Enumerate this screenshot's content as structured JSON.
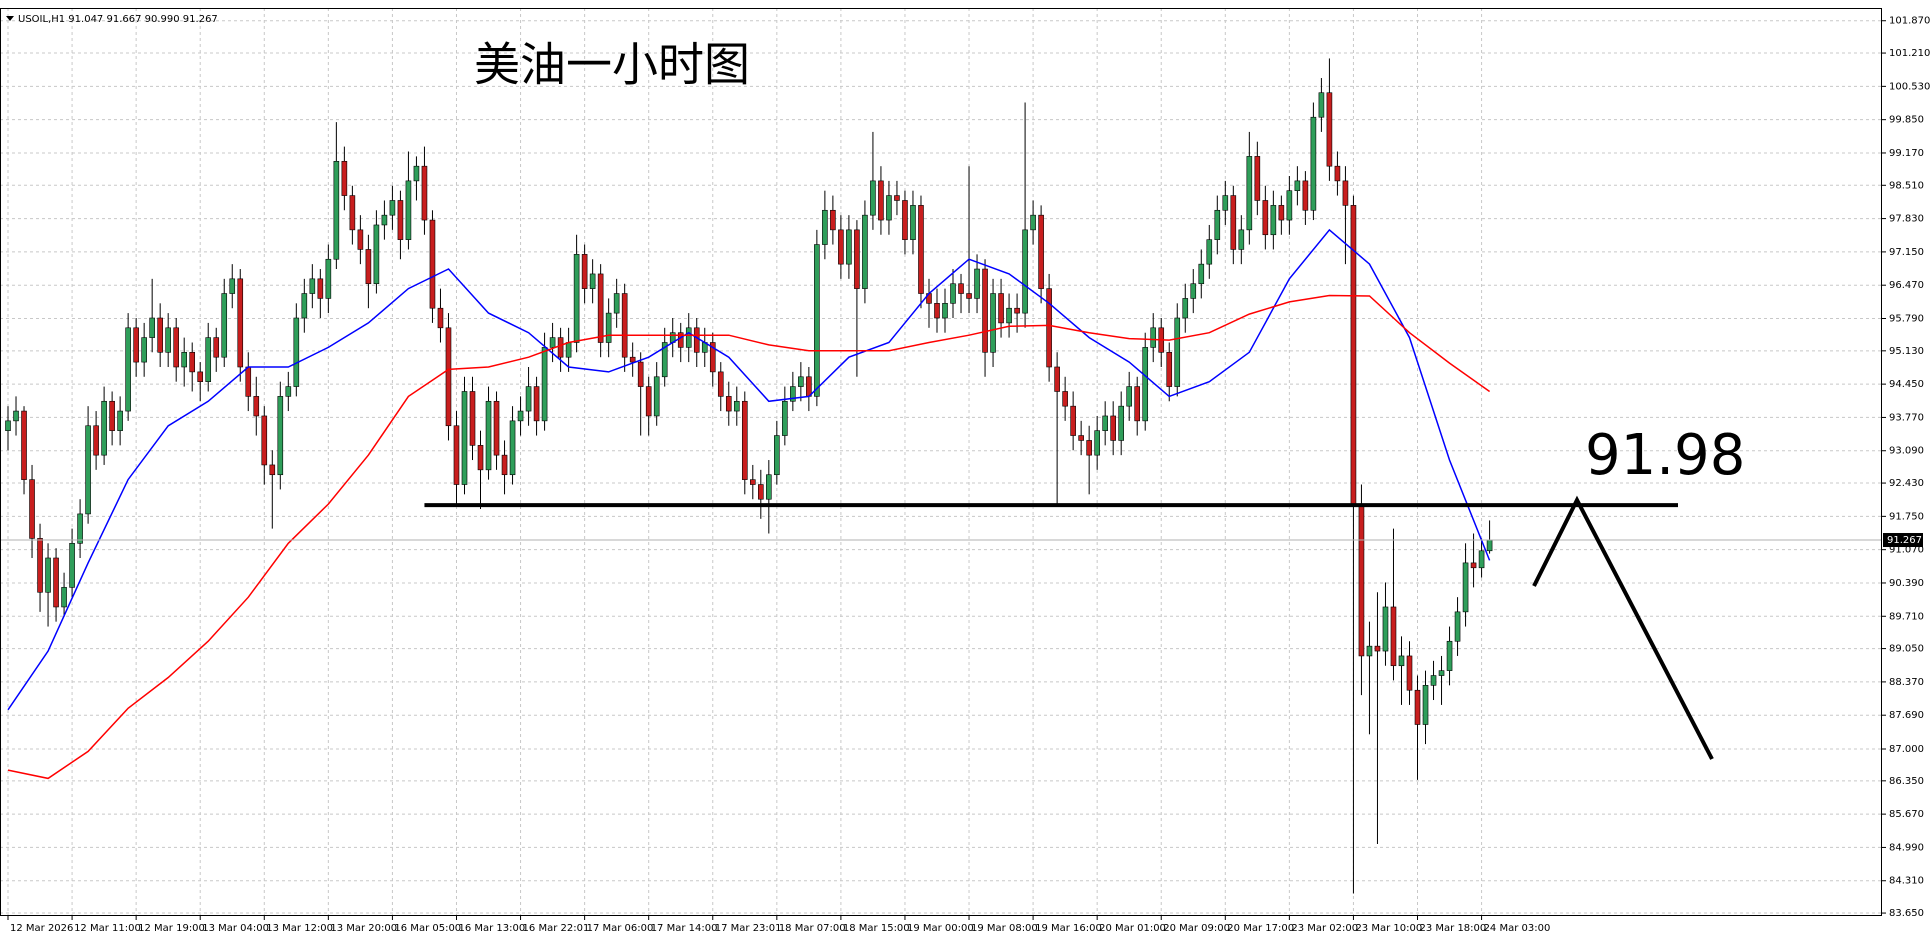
{
  "chart_data": {
    "type": "candlestick",
    "symbol_info": "USOIL,H1  91.047 91.667 90.990 91.267",
    "title": "美油一小时图",
    "categories": [
      "12 Mar 2026",
      null,
      null,
      null,
      null,
      null,
      null,
      null,
      "12 Mar 11:00",
      null,
      null,
      null,
      null,
      null,
      null,
      null,
      "12 Mar 19:00",
      null,
      null,
      null,
      null,
      null,
      null,
      null,
      "13 Mar 04:00",
      null,
      null,
      null,
      null,
      null,
      null,
      null,
      "13 Mar 12:00",
      null,
      null,
      null,
      null,
      null,
      null,
      null,
      "13 Mar 20:00",
      null,
      null,
      null,
      null,
      null,
      null,
      null,
      "16 Mar 05:00",
      null,
      null,
      null,
      null,
      null,
      null,
      null,
      "16 Mar 13:00",
      null,
      null,
      null,
      null,
      null,
      null,
      null,
      "16 Mar 22:01",
      null,
      null,
      null,
      null,
      null,
      null,
      null,
      "17 Mar 06:00",
      null,
      null,
      null,
      null,
      null,
      null,
      null,
      "17 Mar 14:00",
      null,
      null,
      null,
      null,
      null,
      null,
      null,
      "17 Mar 23:01",
      null,
      null,
      null,
      null,
      null,
      null,
      null,
      "18 Mar 07:00",
      null,
      null,
      null,
      null,
      null,
      null,
      null,
      "18 Mar 15:00",
      null,
      null,
      null,
      null,
      null,
      null,
      null,
      "19 Mar 00:00",
      null,
      null,
      null,
      null,
      null,
      null,
      null,
      "19 Mar 08:00",
      null,
      null,
      null,
      null,
      null,
      null,
      null,
      "19 Mar 16:00",
      null,
      null,
      null,
      null,
      null,
      null,
      null,
      "20 Mar 01:00",
      null,
      null,
      null,
      null,
      null,
      null,
      null,
      "20 Mar 09:00",
      null,
      null,
      null,
      null,
      null,
      null,
      null,
      "20 Mar 17:00",
      null,
      null,
      null,
      null,
      null,
      null,
      null,
      "23 Mar 02:00",
      null,
      null,
      null,
      null,
      null,
      null,
      null,
      "23 Mar 10:00",
      null,
      null,
      null,
      null,
      null,
      null,
      null,
      "23 Mar 18:00",
      null,
      null,
      null,
      null,
      null,
      null,
      null,
      "24 Mar 03:00",
      null
    ],
    "ohlc": [
      [
        93.5,
        94.0,
        93.1,
        93.7
      ],
      [
        93.7,
        94.2,
        93.4,
        93.9
      ],
      [
        93.9,
        94.0,
        92.2,
        92.5
      ],
      [
        92.5,
        92.8,
        90.9,
        91.3
      ],
      [
        91.3,
        91.6,
        89.8,
        90.2
      ],
      [
        90.2,
        91.2,
        89.5,
        90.9
      ],
      [
        90.9,
        91.1,
        89.6,
        89.9
      ],
      [
        89.9,
        90.6,
        89.7,
        90.3
      ],
      [
        90.3,
        91.5,
        90.1,
        91.2
      ],
      [
        91.2,
        92.1,
        90.9,
        91.8
      ],
      [
        91.8,
        94.0,
        91.6,
        93.6
      ],
      [
        93.6,
        93.9,
        92.7,
        93.0
      ],
      [
        93.0,
        94.4,
        92.8,
        94.1
      ],
      [
        94.1,
        94.3,
        93.2,
        93.5
      ],
      [
        93.5,
        94.2,
        93.2,
        93.9
      ],
      [
        93.9,
        95.9,
        93.7,
        95.6
      ],
      [
        95.6,
        95.8,
        94.6,
        94.9
      ],
      [
        94.9,
        95.7,
        94.6,
        95.4
      ],
      [
        95.4,
        96.6,
        95.1,
        95.8
      ],
      [
        95.8,
        96.1,
        94.8,
        95.1
      ],
      [
        95.1,
        95.9,
        94.8,
        95.6
      ],
      [
        95.6,
        95.8,
        94.5,
        94.8
      ],
      [
        94.8,
        95.4,
        94.4,
        95.1
      ],
      [
        95.1,
        95.3,
        94.3,
        94.7
      ],
      [
        94.7,
        94.9,
        94.1,
        94.5
      ],
      [
        94.5,
        95.7,
        94.3,
        95.4
      ],
      [
        95.4,
        95.6,
        94.7,
        95.0
      ],
      [
        95.0,
        96.6,
        94.8,
        96.3
      ],
      [
        96.3,
        96.9,
        96.0,
        96.6
      ],
      [
        96.6,
        96.8,
        94.5,
        94.8
      ],
      [
        94.8,
        95.1,
        93.9,
        94.2
      ],
      [
        94.2,
        94.6,
        93.4,
        93.8
      ],
      [
        93.8,
        94.0,
        92.4,
        92.8
      ],
      [
        92.8,
        93.1,
        91.5,
        92.6
      ],
      [
        92.6,
        94.5,
        92.3,
        94.2
      ],
      [
        94.2,
        94.7,
        93.9,
        94.4
      ],
      [
        94.4,
        96.1,
        94.2,
        95.8
      ],
      [
        95.8,
        96.6,
        95.5,
        96.3
      ],
      [
        96.3,
        96.9,
        96.0,
        96.6
      ],
      [
        96.6,
        96.8,
        95.8,
        96.2
      ],
      [
        96.2,
        97.3,
        95.9,
        97.0
      ],
      [
        97.0,
        99.8,
        96.8,
        99.0
      ],
      [
        99.0,
        99.3,
        98.0,
        98.3
      ],
      [
        98.3,
        98.5,
        97.3,
        97.6
      ],
      [
        97.6,
        97.9,
        96.9,
        97.2
      ],
      [
        97.2,
        97.5,
        96.0,
        96.5
      ],
      [
        96.5,
        98.0,
        96.3,
        97.7
      ],
      [
        97.7,
        98.2,
        97.4,
        97.9
      ],
      [
        97.9,
        98.5,
        97.6,
        98.2
      ],
      [
        98.2,
        98.4,
        97.0,
        97.4
      ],
      [
        97.4,
        99.2,
        97.2,
        98.6
      ],
      [
        98.6,
        99.1,
        98.2,
        98.9
      ],
      [
        98.9,
        99.3,
        97.5,
        97.8
      ],
      [
        97.8,
        98.0,
        95.7,
        96.0
      ],
      [
        96.0,
        96.4,
        95.3,
        95.6
      ],
      [
        95.6,
        95.9,
        93.3,
        93.6
      ],
      [
        93.6,
        93.9,
        92.0,
        92.4
      ],
      [
        92.4,
        94.6,
        92.2,
        94.3
      ],
      [
        94.3,
        94.6,
        92.9,
        93.2
      ],
      [
        93.2,
        93.5,
        91.9,
        92.7
      ],
      [
        92.7,
        94.4,
        92.5,
        94.1
      ],
      [
        94.1,
        94.3,
        92.7,
        93.0
      ],
      [
        93.0,
        93.3,
        92.2,
        92.6
      ],
      [
        92.6,
        94.0,
        92.4,
        93.7
      ],
      [
        93.7,
        94.2,
        93.4,
        93.9
      ],
      [
        93.9,
        94.8,
        93.6,
        94.4
      ],
      [
        94.4,
        94.6,
        93.4,
        93.7
      ],
      [
        93.7,
        95.5,
        93.5,
        95.2
      ],
      [
        95.2,
        95.7,
        94.9,
        95.4
      ],
      [
        95.4,
        95.6,
        94.7,
        95.0
      ],
      [
        95.0,
        95.6,
        94.7,
        95.3
      ],
      [
        95.3,
        97.5,
        95.1,
        97.1
      ],
      [
        97.1,
        97.3,
        96.1,
        96.4
      ],
      [
        96.4,
        97.0,
        96.1,
        96.7
      ],
      [
        96.7,
        96.9,
        95.0,
        95.3
      ],
      [
        95.3,
        96.2,
        95.0,
        95.9
      ],
      [
        95.9,
        96.6,
        95.6,
        96.3
      ],
      [
        96.3,
        96.5,
        94.7,
        95.0
      ],
      [
        95.0,
        95.3,
        94.6,
        94.9
      ],
      [
        94.9,
        95.1,
        93.4,
        94.4
      ],
      [
        94.4,
        94.6,
        93.4,
        93.8
      ],
      [
        93.8,
        94.9,
        93.6,
        94.6
      ],
      [
        94.6,
        95.6,
        94.4,
        95.3
      ],
      [
        95.3,
        95.8,
        95.0,
        95.5
      ],
      [
        95.5,
        95.7,
        94.9,
        95.2
      ],
      [
        95.2,
        95.9,
        94.9,
        95.6
      ],
      [
        95.6,
        95.8,
        94.8,
        95.1
      ],
      [
        95.1,
        95.6,
        94.8,
        95.3
      ],
      [
        95.3,
        95.5,
        94.4,
        94.7
      ],
      [
        94.7,
        94.9,
        93.9,
        94.2
      ],
      [
        94.2,
        94.5,
        93.6,
        93.9
      ],
      [
        93.9,
        94.4,
        93.6,
        94.1
      ],
      [
        94.1,
        94.3,
        92.2,
        92.5
      ],
      [
        92.5,
        92.8,
        92.1,
        92.4
      ],
      [
        92.4,
        92.7,
        91.7,
        92.1
      ],
      [
        92.1,
        92.9,
        91.4,
        92.6
      ],
      [
        92.6,
        93.7,
        92.4,
        93.4
      ],
      [
        93.4,
        94.4,
        93.2,
        94.1
      ],
      [
        94.1,
        94.7,
        93.9,
        94.4
      ],
      [
        94.4,
        94.9,
        94.1,
        94.6
      ],
      [
        94.6,
        94.8,
        93.9,
        94.2
      ],
      [
        94.2,
        97.6,
        94.0,
        97.3
      ],
      [
        97.3,
        98.4,
        97.0,
        98.0
      ],
      [
        98.0,
        98.3,
        97.3,
        97.6
      ],
      [
        97.6,
        97.9,
        96.6,
        96.9
      ],
      [
        96.9,
        97.9,
        96.6,
        97.6
      ],
      [
        97.6,
        97.8,
        94.6,
        96.4
      ],
      [
        96.4,
        98.2,
        96.1,
        97.9
      ],
      [
        97.9,
        99.6,
        97.6,
        98.6
      ],
      [
        98.6,
        98.9,
        97.5,
        97.8
      ],
      [
        97.8,
        98.6,
        97.5,
        98.3
      ],
      [
        98.3,
        98.6,
        97.9,
        98.2
      ],
      [
        98.2,
        98.4,
        97.1,
        97.4
      ],
      [
        97.4,
        98.4,
        97.1,
        98.1
      ],
      [
        98.1,
        98.3,
        96.0,
        96.3
      ],
      [
        96.3,
        96.6,
        95.6,
        96.1
      ],
      [
        96.1,
        96.4,
        95.5,
        95.8
      ],
      [
        95.8,
        96.4,
        95.5,
        96.1
      ],
      [
        96.1,
        96.8,
        95.8,
        96.5
      ],
      [
        96.5,
        96.7,
        95.9,
        96.3
      ],
      [
        96.3,
        98.9,
        95.9,
        96.2
      ],
      [
        96.2,
        97.1,
        95.9,
        96.8
      ],
      [
        96.8,
        97.0,
        94.6,
        95.1
      ],
      [
        95.1,
        96.6,
        94.8,
        96.3
      ],
      [
        96.3,
        96.6,
        95.4,
        95.7
      ],
      [
        95.7,
        96.3,
        95.4,
        96.0
      ],
      [
        96.0,
        96.3,
        95.5,
        95.9
      ],
      [
        95.9,
        100.2,
        95.6,
        97.6
      ],
      [
        97.6,
        98.2,
        97.3,
        97.9
      ],
      [
        97.9,
        98.1,
        96.1,
        96.4
      ],
      [
        96.4,
        96.7,
        94.5,
        94.8
      ],
      [
        94.8,
        95.1,
        92.0,
        94.3
      ],
      [
        94.3,
        94.6,
        93.7,
        94.0
      ],
      [
        94.0,
        94.3,
        93.1,
        93.4
      ],
      [
        93.4,
        93.7,
        93.0,
        93.3
      ],
      [
        93.3,
        93.6,
        92.2,
        93.0
      ],
      [
        93.0,
        93.8,
        92.7,
        93.5
      ],
      [
        93.5,
        94.1,
        93.2,
        93.8
      ],
      [
        93.8,
        94.1,
        93.0,
        93.3
      ],
      [
        93.3,
        94.3,
        93.0,
        94.0
      ],
      [
        94.0,
        94.7,
        93.7,
        94.4
      ],
      [
        94.4,
        94.6,
        93.4,
        93.7
      ],
      [
        93.7,
        95.5,
        93.5,
        95.2
      ],
      [
        95.2,
        95.9,
        94.9,
        95.6
      ],
      [
        95.6,
        95.8,
        94.8,
        95.1
      ],
      [
        95.1,
        95.3,
        94.1,
        94.4
      ],
      [
        94.4,
        96.1,
        94.2,
        95.8
      ],
      [
        95.8,
        96.5,
        95.5,
        96.2
      ],
      [
        96.2,
        96.8,
        95.9,
        96.5
      ],
      [
        96.5,
        97.2,
        96.2,
        96.9
      ],
      [
        96.9,
        97.7,
        96.6,
        97.4
      ],
      [
        97.4,
        98.3,
        97.1,
        98.0
      ],
      [
        98.0,
        98.6,
        97.7,
        98.3
      ],
      [
        98.3,
        98.5,
        96.9,
        97.2
      ],
      [
        97.2,
        97.9,
        96.9,
        97.6
      ],
      [
        97.6,
        99.6,
        97.3,
        99.1
      ],
      [
        99.1,
        99.4,
        97.9,
        98.2
      ],
      [
        98.2,
        98.5,
        97.2,
        97.5
      ],
      [
        97.5,
        98.4,
        97.2,
        98.1
      ],
      [
        98.1,
        98.3,
        97.5,
        97.8
      ],
      [
        97.8,
        98.7,
        97.5,
        98.4
      ],
      [
        98.4,
        98.9,
        98.1,
        98.6
      ],
      [
        98.6,
        98.8,
        97.7,
        98.0
      ],
      [
        98.0,
        100.2,
        97.8,
        99.9
      ],
      [
        99.9,
        100.7,
        99.6,
        100.4
      ],
      [
        100.4,
        101.1,
        98.6,
        98.9
      ],
      [
        98.9,
        99.2,
        98.3,
        98.6
      ],
      [
        98.6,
        98.9,
        96.9,
        98.1
      ],
      [
        98.1,
        98.3,
        84.05,
        92.0
      ],
      [
        92.0,
        92.4,
        88.1,
        88.9
      ],
      [
        88.9,
        89.6,
        87.3,
        89.1
      ],
      [
        89.1,
        90.2,
        85.06,
        89.0
      ],
      [
        89.0,
        90.4,
        88.7,
        89.9
      ],
      [
        89.9,
        91.5,
        88.4,
        88.7
      ],
      [
        88.7,
        89.3,
        87.9,
        88.9
      ],
      [
        88.9,
        89.2,
        87.9,
        88.2
      ],
      [
        88.2,
        88.5,
        86.37,
        87.5
      ],
      [
        87.5,
        88.6,
        87.1,
        88.3
      ],
      [
        88.3,
        88.8,
        88.0,
        88.5
      ],
      [
        88.5,
        88.9,
        87.9,
        88.6
      ],
      [
        88.6,
        89.5,
        88.3,
        89.2
      ],
      [
        89.2,
        90.1,
        88.9,
        89.8
      ],
      [
        89.8,
        91.2,
        89.5,
        90.8
      ],
      [
        90.8,
        91.4,
        90.3,
        90.7
      ],
      [
        90.7,
        91.3,
        90.5,
        91.047
      ],
      [
        91.047,
        91.667,
        90.99,
        91.267
      ]
    ],
    "up_color": "#2f9e5a",
    "down_color": "#c81e1e",
    "ma_x": [
      0,
      5,
      10,
      15,
      20,
      25,
      30,
      35,
      40,
      45,
      50,
      55,
      60,
      65,
      70,
      75,
      80,
      85,
      90,
      95,
      100,
      105,
      110,
      115,
      120,
      125,
      130,
      135,
      140,
      145,
      150,
      155,
      160,
      165,
      170,
      175,
      180,
      185
    ],
    "ma": [
      {
        "color": "#0000ff",
        "values": [
          87.8,
          89.0,
          90.8,
          92.5,
          93.6,
          94.1,
          94.8,
          94.8,
          95.2,
          95.7,
          96.4,
          96.8,
          95.9,
          95.5,
          94.8,
          94.7,
          95.0,
          95.5,
          95.0,
          94.1,
          94.2,
          95.0,
          95.3,
          96.3,
          97.0,
          96.7,
          96.1,
          95.4,
          94.9,
          94.2,
          94.5,
          95.1,
          96.6,
          97.6,
          96.9,
          95.4,
          92.9,
          90.85
        ]
      },
      {
        "color": "#ff0000",
        "values": [
          86.57,
          86.4,
          86.95,
          87.83,
          88.46,
          89.2,
          90.1,
          91.2,
          92.0,
          93.0,
          94.2,
          94.75,
          94.8,
          95.0,
          95.3,
          95.45,
          95.45,
          95.45,
          95.45,
          95.25,
          95.13,
          95.13,
          95.13,
          95.3,
          95.45,
          95.63,
          95.65,
          95.5,
          95.38,
          95.35,
          95.5,
          95.88,
          96.13,
          96.26,
          96.25,
          95.5,
          94.88,
          94.3
        ]
      }
    ],
    "xlim": [
      -1,
      234
    ],
    "ylim": [
      83.59,
      102.13
    ],
    "yticks": [
      {
        "value": 83.65,
        "label": "83.650"
      },
      {
        "value": 84.31,
        "label": "84.310"
      },
      {
        "value": 84.99,
        "label": "84.990"
      },
      {
        "value": 85.67,
        "label": "85.670"
      },
      {
        "value": 86.35,
        "label": "86.350"
      },
      {
        "value": 87.0,
        "label": "87.000"
      },
      {
        "value": 87.69,
        "label": "87.690"
      },
      {
        "value": 88.37,
        "label": "88.370"
      },
      {
        "value": 89.05,
        "label": "89.050"
      },
      {
        "value": 89.71,
        "label": "89.710"
      },
      {
        "value": 90.39,
        "label": "90.390"
      },
      {
        "value": 91.07,
        "label": "91.070"
      },
      {
        "value": 91.75,
        "label": "91.750"
      },
      {
        "value": 92.43,
        "label": "92.430"
      },
      {
        "value": 93.09,
        "label": "93.090"
      },
      {
        "value": 93.77,
        "label": "93.770"
      },
      {
        "value": 94.45,
        "label": "94.450"
      },
      {
        "value": 95.13,
        "label": "95.130"
      },
      {
        "value": 95.79,
        "label": "95.790"
      },
      {
        "value": 96.47,
        "label": "96.470"
      },
      {
        "value": 97.15,
        "label": "97.150"
      },
      {
        "value": 97.83,
        "label": "97.830"
      },
      {
        "value": 98.51,
        "label": "98.510"
      },
      {
        "value": 99.17,
        "label": "99.170"
      },
      {
        "value": 99.85,
        "label": "99.850"
      },
      {
        "value": 100.53,
        "label": "100.530"
      },
      {
        "value": 101.21,
        "label": "101.210"
      },
      {
        "value": 101.87,
        "label": "101.870"
      }
    ],
    "grid": true,
    "level": 91.98,
    "level_start": 52
  }
}
